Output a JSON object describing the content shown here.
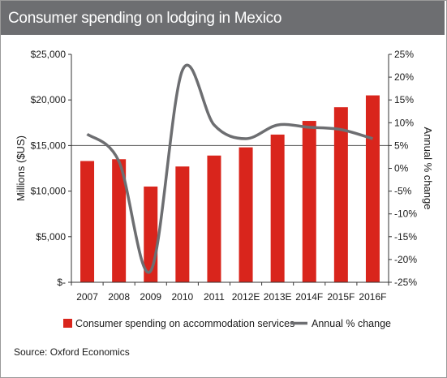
{
  "title": "Consumer spending on lodging in Mexico",
  "source": "Source: Oxford Economics",
  "colors": {
    "bar": "#d9251c",
    "line": "#6d6e71",
    "title_bg": "#6d6e71"
  },
  "chart_data": {
    "type": "bar+line",
    "categories": [
      "2007",
      "2008",
      "2009",
      "2010",
      "2011",
      "2012E",
      "2013E",
      "2014F",
      "2015F",
      "2016F"
    ],
    "ylabel_left": "Millions ($US)",
    "ylabel_right": "Annual % change",
    "ylim_left": [
      0,
      25000
    ],
    "ylim_right": [
      -25,
      25
    ],
    "yticks_left": [
      "$-",
      "$5,000",
      "$10,000",
      "$15,000",
      "$20,000",
      "$25,000"
    ],
    "yticks_right": [
      "-25%",
      "-20%",
      "-15%",
      "-10%",
      "-5%",
      "0%",
      "5%",
      "10%",
      "15%",
      "20%",
      "25%"
    ],
    "gridlines": [
      15000
    ],
    "series": [
      {
        "name": "Consumer spending on accommodation services",
        "type": "bar",
        "axis": "left",
        "values": [
          13300,
          13500,
          10500,
          12700,
          13900,
          14800,
          16200,
          17700,
          19200,
          20500
        ]
      },
      {
        "name": "Annual % change",
        "type": "line",
        "axis": "right",
        "values": [
          7.5,
          1.5,
          -22.5,
          21.5,
          9.5,
          6.5,
          9.5,
          9.0,
          8.5,
          6.5
        ]
      }
    ],
    "legend_position": "bottom"
  }
}
